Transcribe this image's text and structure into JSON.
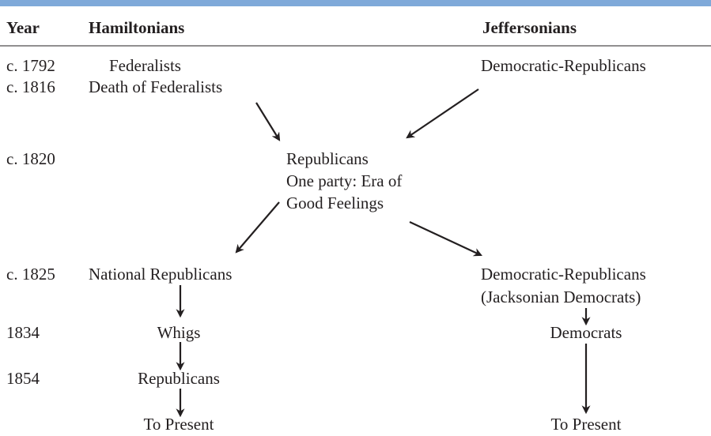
{
  "header": {
    "year": "Year",
    "left": "Hamiltonians",
    "right": "Jeffersonians"
  },
  "years": [
    "c. 1792",
    "c. 1816",
    "c. 1820",
    "c. 1825",
    "1834",
    "1854"
  ],
  "nodes": [
    {
      "lines": [
        "Federalists"
      ]
    },
    {
      "lines": [
        "Death of Federalists"
      ]
    },
    {
      "lines": [
        "Democratic-Republicans"
      ]
    },
    {
      "lines": [
        "Republicans",
        "One party: Era of",
        "Good Feelings"
      ]
    },
    {
      "lines": [
        "National Republicans"
      ]
    },
    {
      "lines": [
        "Democratic-Republicans",
        "(Jacksonian Democrats)"
      ]
    },
    {
      "lines": [
        "Whigs"
      ]
    },
    {
      "lines": [
        "Democrats"
      ]
    },
    {
      "lines": [
        "Republicans"
      ]
    },
    {
      "lines": [
        "To Present"
      ]
    },
    {
      "lines": [
        "To Present"
      ]
    }
  ]
}
